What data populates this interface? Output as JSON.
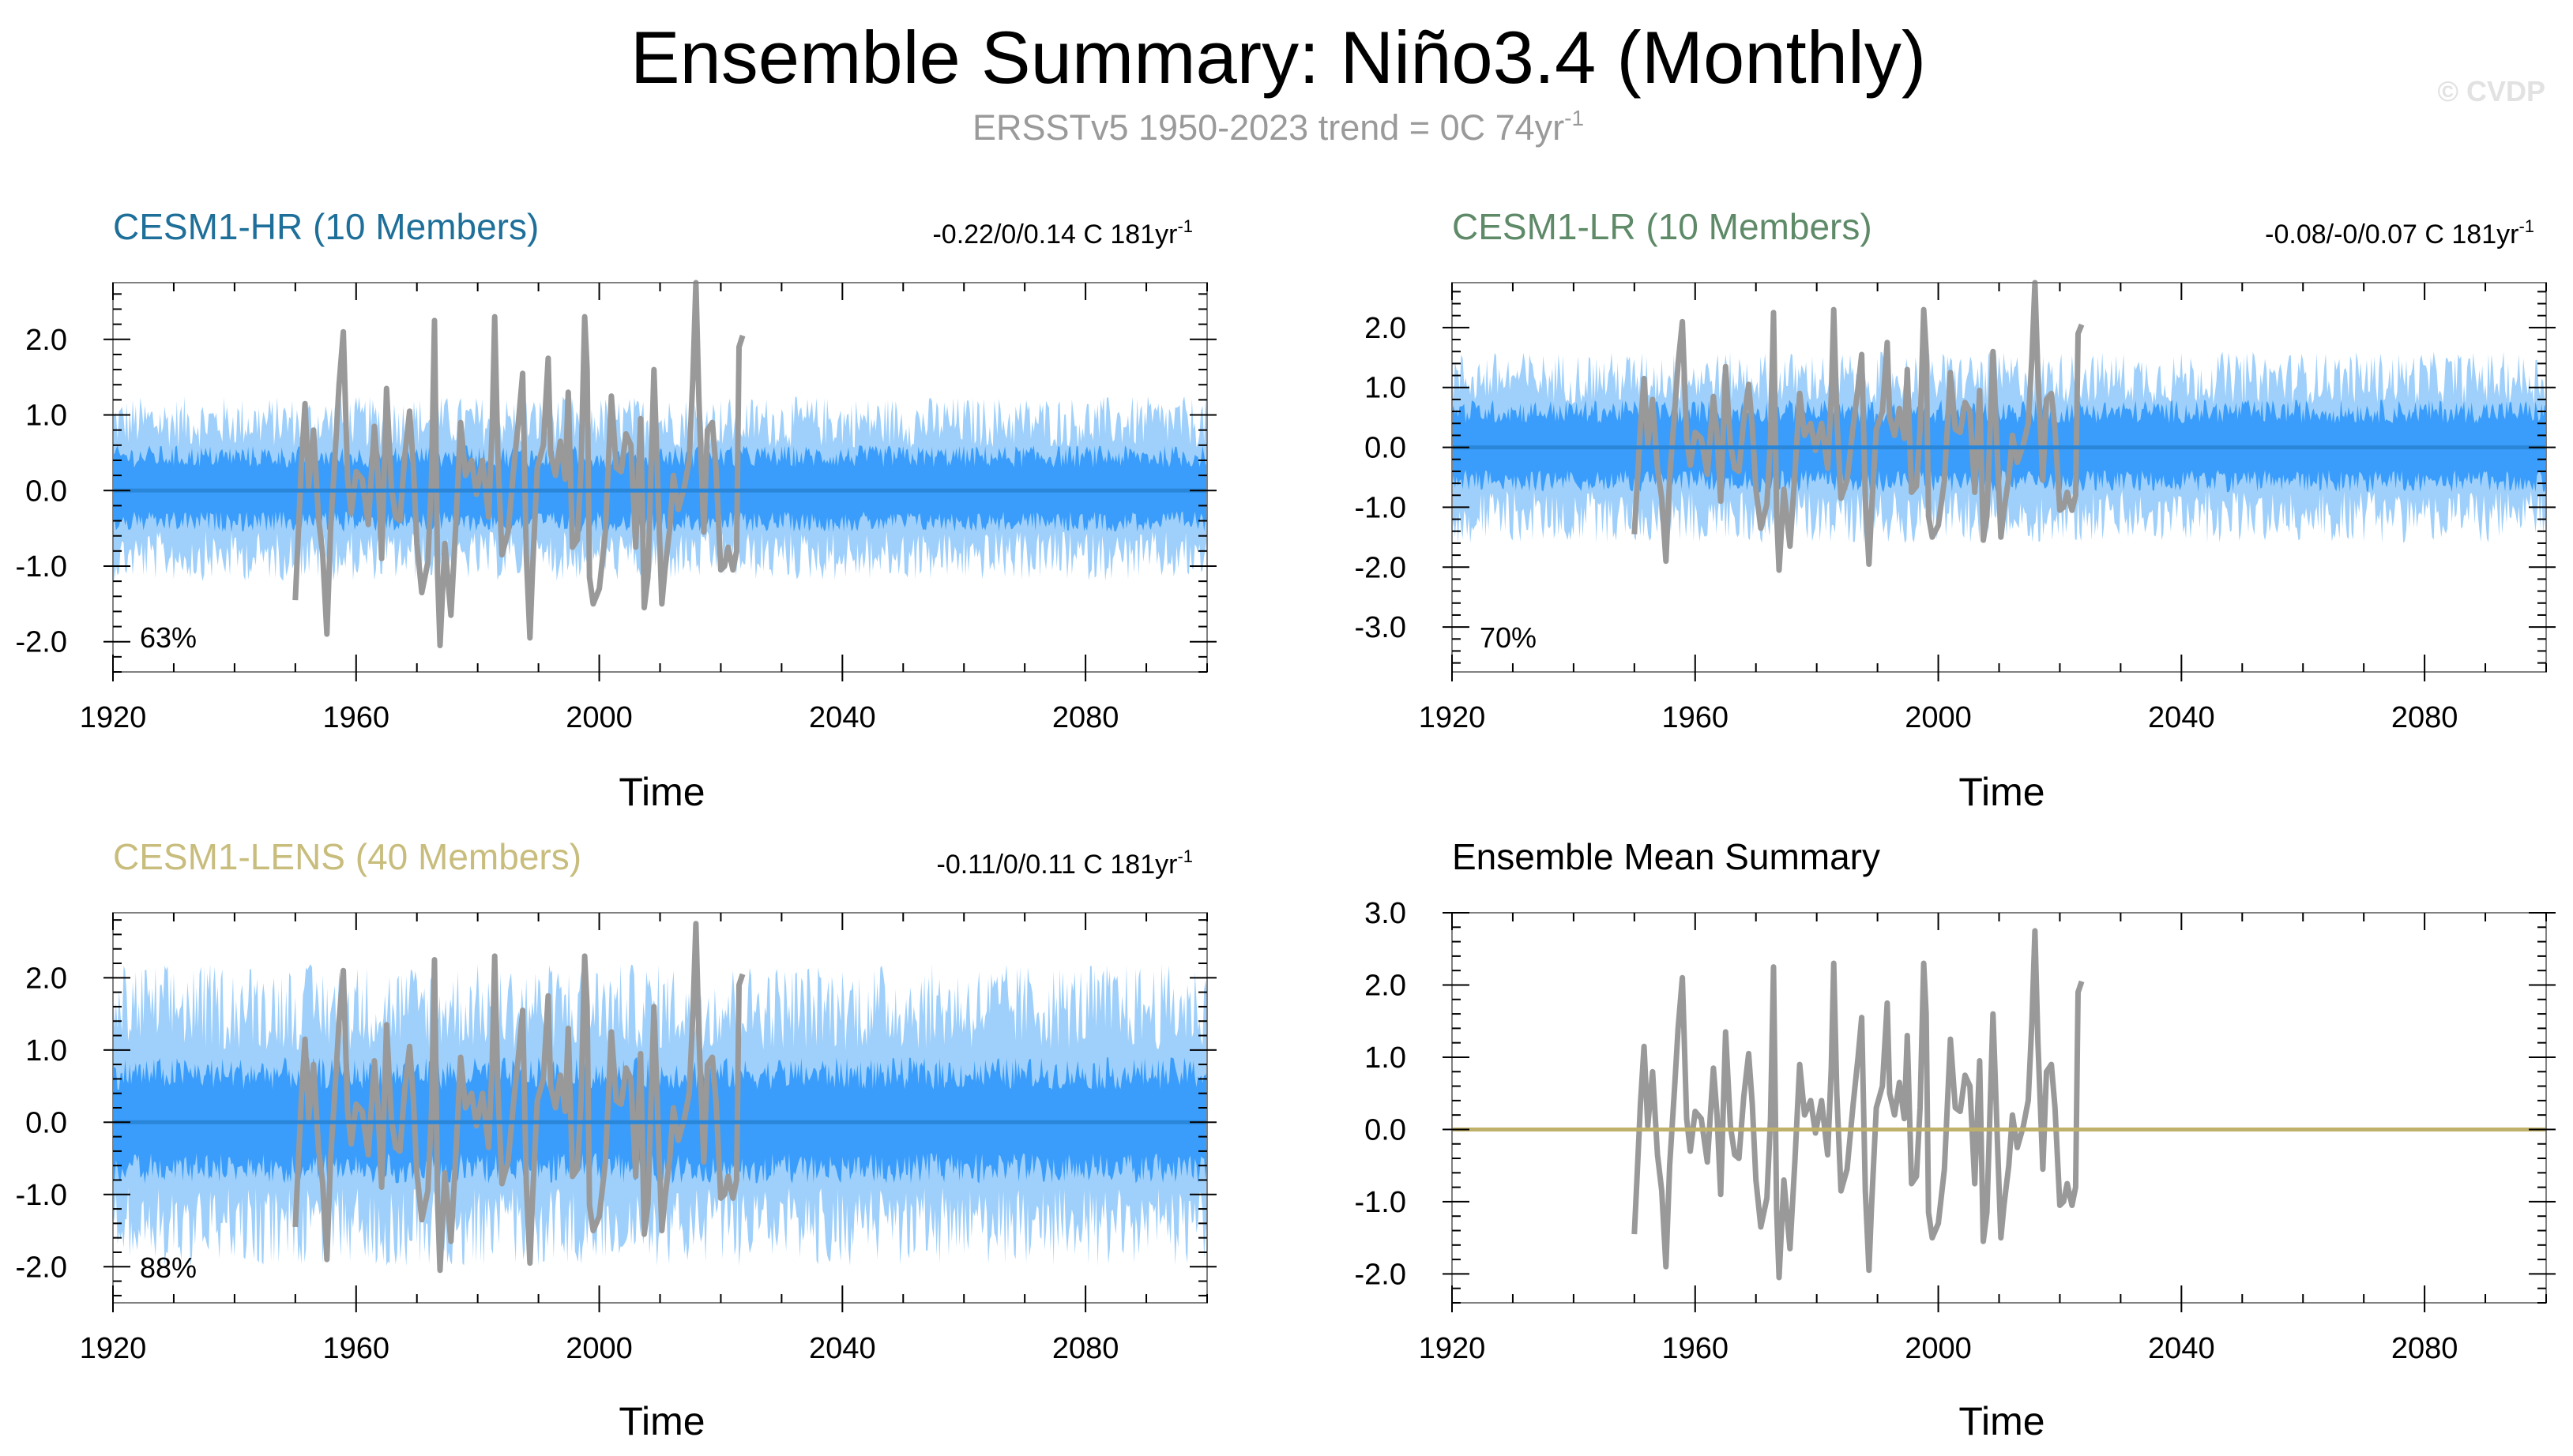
{
  "figure": {
    "title": "Ensemble Summary: Niño3.4 (Monthly)",
    "subtitle_main": "ERSSTv5 1950-2023 trend = 0C 74yr",
    "subtitle_sup": "-1",
    "watermark": "© CVDP"
  },
  "colors": {
    "obs": "#999999",
    "spread_outer": "#9fd0fb",
    "spread_inner": "#3a9dfb",
    "ens_mean": "#2a86d8",
    "mean_summary": "#bfb06a",
    "hr_title": "#1e6f99",
    "lr_title": "#5e8a68",
    "lens_title": "#c8bd7d",
    "frame": "#808080"
  },
  "chart_data": [
    {
      "type": "area",
      "id": "hr",
      "title": "CESM1-HR (10 Members)",
      "trend_main": "-0.22/0/0.14 C 181yr",
      "trend_sup": "-1",
      "percent": "63%",
      "xlabel": "Time",
      "xlim": [
        1920,
        2100
      ],
      "ylim": [
        -2.4,
        2.75
      ],
      "xticks": [
        1920,
        1960,
        2000,
        2040,
        2080
      ],
      "xtick_labels": [
        "1920",
        "1960",
        "2000",
        "2040",
        "2080"
      ],
      "yticks": [
        2.0,
        1.0,
        0.0,
        -1.0,
        -2.0
      ],
      "ytick_labels": [
        "2.0",
        "1.0",
        "0.0",
        "-1.0",
        "-2.0"
      ],
      "spread_outer": [
        -1.2,
        1.25
      ],
      "spread_inner": [
        -0.55,
        0.6
      ],
      "series": [
        {
          "name": "ensemble mean",
          "x": [
            1920,
            2100
          ],
          "values": [
            0.0,
            0.0
          ]
        },
        {
          "name": "observations",
          "x_start": 1950,
          "x_end": 2023
        }
      ]
    },
    {
      "type": "area",
      "id": "lr",
      "title": "CESM1-LR (10 Members)",
      "trend_main": "-0.08/-0/0.07 C 181yr",
      "trend_sup": "-1",
      "percent": "70%",
      "xlabel": "Time",
      "xlim": [
        1920,
        2100
      ],
      "ylim": [
        -3.75,
        2.75
      ],
      "xticks": [
        1920,
        1960,
        2000,
        2040,
        2080
      ],
      "xtick_labels": [
        "1920",
        "1960",
        "2000",
        "2040",
        "2080"
      ],
      "yticks": [
        2.0,
        1.0,
        0.0,
        -1.0,
        -2.0,
        -3.0
      ],
      "ytick_labels": [
        "2.0",
        "1.0",
        "0.0",
        "-1.0",
        "-2.0",
        "-3.0"
      ],
      "spread_outer": [
        -1.6,
        1.6
      ],
      "spread_inner": [
        -0.75,
        0.8
      ],
      "series": [
        {
          "name": "ensemble mean",
          "x": [
            1920,
            2100
          ],
          "values": [
            0.0,
            0.0
          ]
        },
        {
          "name": "observations",
          "x_start": 1950,
          "x_end": 2023
        }
      ]
    },
    {
      "type": "area",
      "id": "lens",
      "title": "CESM1-LENS (40 Members)",
      "trend_main": "-0.11/0/0.11 C 181yr",
      "trend_sup": "-1",
      "percent": "88%",
      "xlabel": "Time",
      "xlim": [
        1920,
        2100
      ],
      "ylim": [
        -2.5,
        2.9
      ],
      "xticks": [
        1920,
        1960,
        2000,
        2040,
        2080
      ],
      "xtick_labels": [
        "1920",
        "1960",
        "2000",
        "2040",
        "2080"
      ],
      "yticks": [
        2.0,
        1.0,
        0.0,
        -1.0,
        -2.0
      ],
      "ytick_labels": [
        "2.0",
        "1.0",
        "0.0",
        "-1.0",
        "-2.0"
      ],
      "spread_outer": [
        -2.0,
        2.2
      ],
      "spread_inner": [
        -0.85,
        0.9
      ],
      "series": [
        {
          "name": "ensemble mean",
          "x": [
            1920,
            2100
          ],
          "values": [
            0.0,
            0.0
          ]
        },
        {
          "name": "observations",
          "x_start": 1950,
          "x_end": 2023
        }
      ]
    },
    {
      "type": "line",
      "id": "summary",
      "title": "Ensemble Mean Summary",
      "xlabel": "Time",
      "xlim": [
        1920,
        2100
      ],
      "ylim": [
        -2.4,
        3.0
      ],
      "xticks": [
        1920,
        1960,
        2000,
        2040,
        2080
      ],
      "xtick_labels": [
        "1920",
        "1960",
        "2000",
        "2040",
        "2080"
      ],
      "yticks": [
        3.0,
        2.0,
        1.0,
        0.0,
        -1.0,
        -2.0
      ],
      "ytick_labels": [
        "3.0",
        "2.0",
        "1.0",
        "0.0",
        "-1.0",
        "-2.0"
      ],
      "series": [
        {
          "name": "ensemble mean",
          "x": [
            1920,
            2100
          ],
          "values": [
            0.0,
            0.0
          ]
        },
        {
          "name": "observations",
          "x_start": 1950,
          "x_end": 2023
        }
      ]
    }
  ],
  "observations": {
    "name": "ERSSTv5 Niño3.4",
    "x": [
      1950.0,
      1950.5,
      1951.0,
      1951.6,
      1952.2,
      1953.0,
      1953.8,
      1954.5,
      1955.2,
      1955.8,
      1956.6,
      1957.2,
      1957.9,
      1958.6,
      1959.2,
      1960.0,
      1961.0,
      1962.0,
      1963.0,
      1963.6,
      1964.2,
      1965.0,
      1965.8,
      1966.5,
      1967.2,
      1968.0,
      1968.8,
      1969.4,
      1970.0,
      1970.8,
      1971.8,
      1972.4,
      1972.9,
      1973.4,
      1973.8,
      1974.6,
      1975.6,
      1976.4,
      1977.2,
      1978.0,
      1979.0,
      1979.8,
      1980.8,
      1981.8,
      1982.4,
      1982.8,
      1983.3,
      1984.0,
      1985.0,
      1986.0,
      1986.8,
      1987.4,
      1988.0,
      1988.6,
      1989.0,
      1989.8,
      1990.8,
      1991.6,
      1992.0,
      1992.8,
      1993.6,
      1994.4,
      1994.9,
      1995.6,
      1996.4,
      1997.0,
      1997.6,
      1998.0,
      1998.4,
      1999.0,
      2000.0,
      2001.0,
      2002.0,
      2002.8,
      2003.6,
      2004.4,
      2005.2,
      2006.0,
      2006.8,
      2007.4,
      2008.0,
      2009.0,
      2009.8,
      2010.3,
      2010.8,
      2011.6,
      2012.2,
      2013.0,
      2014.0,
      2014.8,
      2015.4,
      2015.9,
      2016.4,
      2017.2,
      2017.8,
      2018.6,
      2019.2,
      2020.0,
      2020.6,
      2021.2,
      2022.0,
      2022.6,
      2023.0,
      2023.6
    ],
    "values": [
      -1.45,
      -0.55,
      0.35,
      1.15,
      0.05,
      0.8,
      -0.35,
      -0.85,
      -1.9,
      -0.5,
      0.55,
      1.4,
      2.1,
      0.15,
      -0.3,
      0.25,
      0.15,
      -0.45,
      0.85,
      0.2,
      -0.9,
      1.35,
      0.05,
      -0.35,
      -0.4,
      0.45,
      1.05,
      0.35,
      -0.7,
      -1.35,
      -0.95,
      0.15,
      2.25,
      -1.1,
      -2.05,
      -0.7,
      -1.65,
      -0.45,
      0.9,
      0.2,
      0.4,
      -0.05,
      0.4,
      -0.35,
      0.85,
      2.3,
      0.5,
      -0.85,
      -0.55,
      0.35,
      1.0,
      1.55,
      -0.85,
      -1.95,
      -1.1,
      0.3,
      0.6,
      1.75,
      0.5,
      0.2,
      0.65,
      0.15,
      1.3,
      -0.75,
      -0.65,
      0.3,
      2.3,
      1.6,
      -1.15,
      -1.5,
      -1.3,
      -0.55,
      1.25,
      0.3,
      0.25,
      0.75,
      0.6,
      -0.75,
      0.95,
      -1.55,
      -1.15,
      1.6,
      -0.35,
      -1.5,
      -1.05,
      -0.5,
      0.2,
      -0.25,
      0.05,
      0.4,
      1.5,
      2.75,
      1.2,
      -0.55,
      0.8,
      0.9,
      0.3,
      -1.05,
      -1.0,
      -0.75,
      -1.05,
      -0.8,
      1.9,
      2.05
    ]
  }
}
